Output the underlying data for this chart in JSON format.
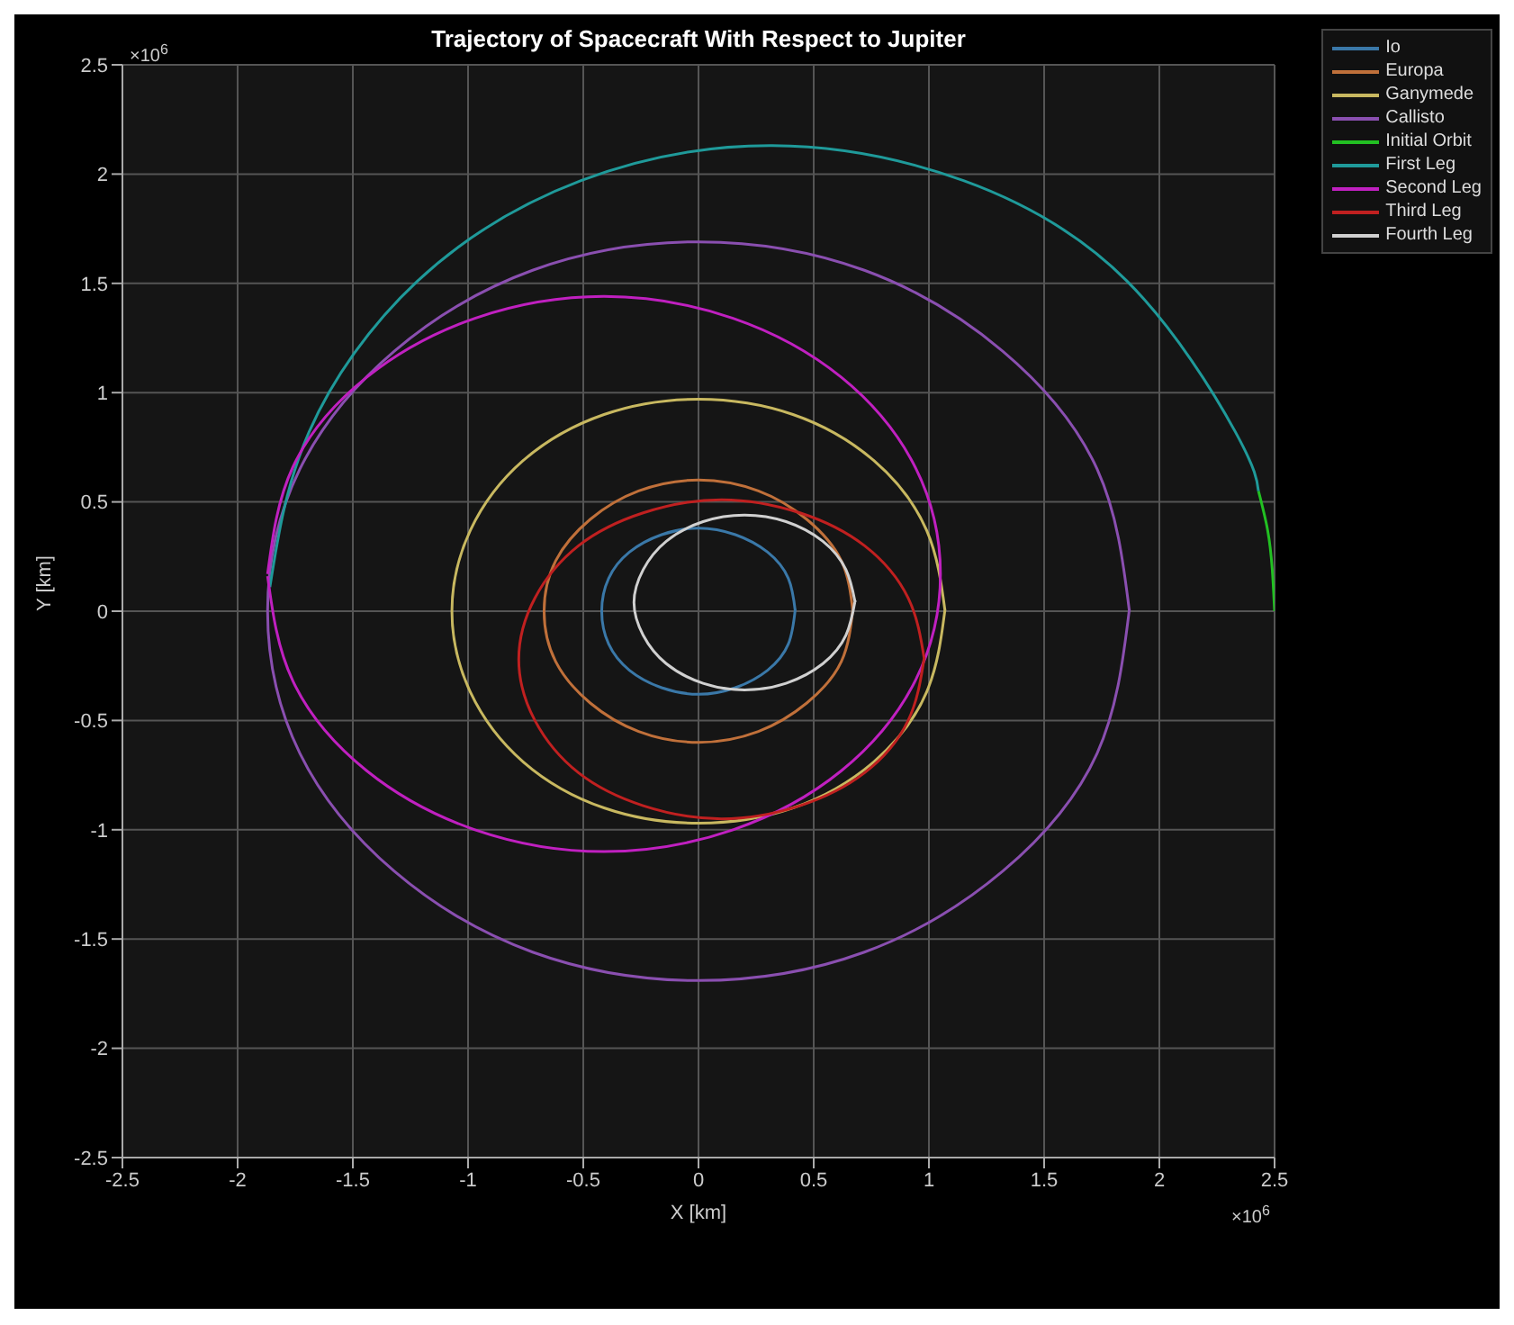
{
  "chart_data": {
    "type": "line",
    "title": "Trajectory of Spacecraft With Respect to Jupiter",
    "xlabel": "X [km]",
    "ylabel": "Y [km]",
    "annotations": [
      "×10$^{6}$",
      "×10$^{6}$"
    ],
    "xlim": [
      -2.5,
      2.5
    ],
    "ylim": [
      -2.5,
      2.5
    ],
    "xticks": [
      -2.5,
      -2,
      -1.5,
      -1,
      -0.5,
      0,
      0.5,
      1,
      1.5,
      2,
      2.5
    ],
    "yticks": [
      -2.5,
      -2,
      -1.5,
      -1,
      -0.5,
      0,
      0.5,
      1,
      1.5,
      2,
      2.5
    ],
    "grid": true,
    "legend": "top right",
    "marker": "none",
    "line_style": "solid",
    "series": [
      {
        "name": "Io",
        "color": "#3a78a8",
        "x": [
          0.42,
          0.39,
          0.3,
          0.16,
          0,
          -0.16,
          -0.3,
          -0.39,
          -0.42,
          -0.39,
          -0.3,
          -0.16,
          0,
          0.16,
          0.3,
          0.39,
          0.42
        ],
        "values": [
          0,
          0.15,
          0.27,
          0.35,
          0.38,
          0.35,
          0.27,
          0.15,
          0,
          -0.15,
          -0.27,
          -0.35,
          -0.38,
          -0.35,
          -0.27,
          -0.15,
          0.01
        ]
      },
      {
        "name": "Europa",
        "color": "#c0703a",
        "x": [
          0.67,
          0.62,
          0.47,
          0.26,
          0,
          -0.26,
          -0.47,
          -0.62,
          -0.67,
          -0.62,
          -0.47,
          -0.26,
          0,
          0.26,
          0.47,
          0.62,
          0.67
        ],
        "values": [
          0,
          0.23,
          0.42,
          0.55,
          0.6,
          0.55,
          0.42,
          0.23,
          0,
          -0.23,
          -0.42,
          -0.55,
          -0.6,
          -0.55,
          -0.42,
          -0.23,
          0.01
        ]
      },
      {
        "name": "Ganymede",
        "color": "#c8b860",
        "x": [
          1.07,
          0.99,
          0.76,
          0.41,
          0,
          -0.41,
          -0.76,
          -0.99,
          -1.07,
          -0.99,
          -0.76,
          -0.41,
          0,
          0.41,
          0.76,
          0.99,
          1.07
        ],
        "values": [
          0,
          0.37,
          0.69,
          0.9,
          0.97,
          0.9,
          0.69,
          0.37,
          0,
          -0.37,
          -0.69,
          -0.9,
          -0.97,
          -0.9,
          -0.69,
          -0.37,
          0.01
        ]
      },
      {
        "name": "Callisto",
        "color": "#8a4fb0",
        "x": [
          1.87,
          1.73,
          1.32,
          0.72,
          0,
          -0.72,
          -1.32,
          -1.73,
          -1.87,
          -1.73,
          -1.32,
          -0.72,
          0,
          0.72,
          1.32,
          1.73,
          1.87
        ],
        "values": [
          0,
          0.65,
          1.19,
          1.56,
          1.69,
          1.56,
          1.19,
          0.65,
          0,
          -0.65,
          -1.19,
          -1.56,
          -1.69,
          -1.56,
          -1.19,
          -0.65,
          0.01
        ]
      },
      {
        "name": "Initial Orbit",
        "color": "#22c022",
        "x": [
          2.5,
          2.49,
          2.47,
          2.43
        ],
        "values": [
          0,
          0.19,
          0.37,
          0.55
        ]
      },
      {
        "name": "First Leg",
        "color": "#1f9a9a",
        "x": [
          2.43,
          2.33,
          1.86,
          1.15,
          0.32,
          -0.51,
          -1.22,
          -1.69,
          -1.86
        ],
        "values": [
          0.55,
          0.82,
          1.51,
          1.97,
          2.13,
          1.97,
          1.51,
          0.82,
          0.11
        ]
      },
      {
        "name": "Second Leg",
        "color": "#c020c0",
        "x": [
          -1.87,
          -1.76,
          -1.44,
          -0.97,
          -0.41,
          0.15,
          0.62,
          0.94,
          1.05,
          0.94,
          0.62,
          0.15,
          -0.41,
          -0.97,
          -1.44,
          -1.76,
          -1.87
        ],
        "values": [
          0.17,
          0.66,
          1.07,
          1.34,
          1.44,
          1.34,
          1.07,
          0.66,
          0.17,
          -0.32,
          -0.73,
          -1.0,
          -1.1,
          -1.0,
          -0.73,
          -0.32,
          0.16
        ]
      },
      {
        "name": "Third Leg",
        "color": "#c02020",
        "x": [
          0.98,
          0.91,
          0.72,
          0.44,
          0.1,
          -0.24,
          -0.52,
          -0.71,
          -0.78,
          -0.71,
          -0.52,
          -0.24,
          0.1,
          0.44,
          0.72,
          0.91,
          0.98
        ],
        "values": [
          -0.22,
          0.06,
          0.3,
          0.45,
          0.51,
          0.45,
          0.3,
          0.06,
          -0.22,
          -0.5,
          -0.74,
          -0.89,
          -0.95,
          -0.89,
          -0.74,
          -0.5,
          -0.21
        ]
      },
      {
        "name": "Fourth Leg",
        "color": "#d0d0d0",
        "x": [
          0.68,
          0.64,
          0.54,
          0.38,
          0.2,
          0.02,
          -0.14,
          -0.24,
          -0.28,
          -0.24,
          -0.14,
          0.02,
          0.2,
          0.38,
          0.54,
          0.64,
          0.68
        ],
        "values": [
          0.04,
          0.19,
          0.32,
          0.41,
          0.44,
          0.41,
          0.32,
          0.19,
          0.04,
          -0.11,
          -0.24,
          -0.33,
          -0.36,
          -0.33,
          -0.24,
          -0.11,
          0.05
        ]
      }
    ]
  }
}
